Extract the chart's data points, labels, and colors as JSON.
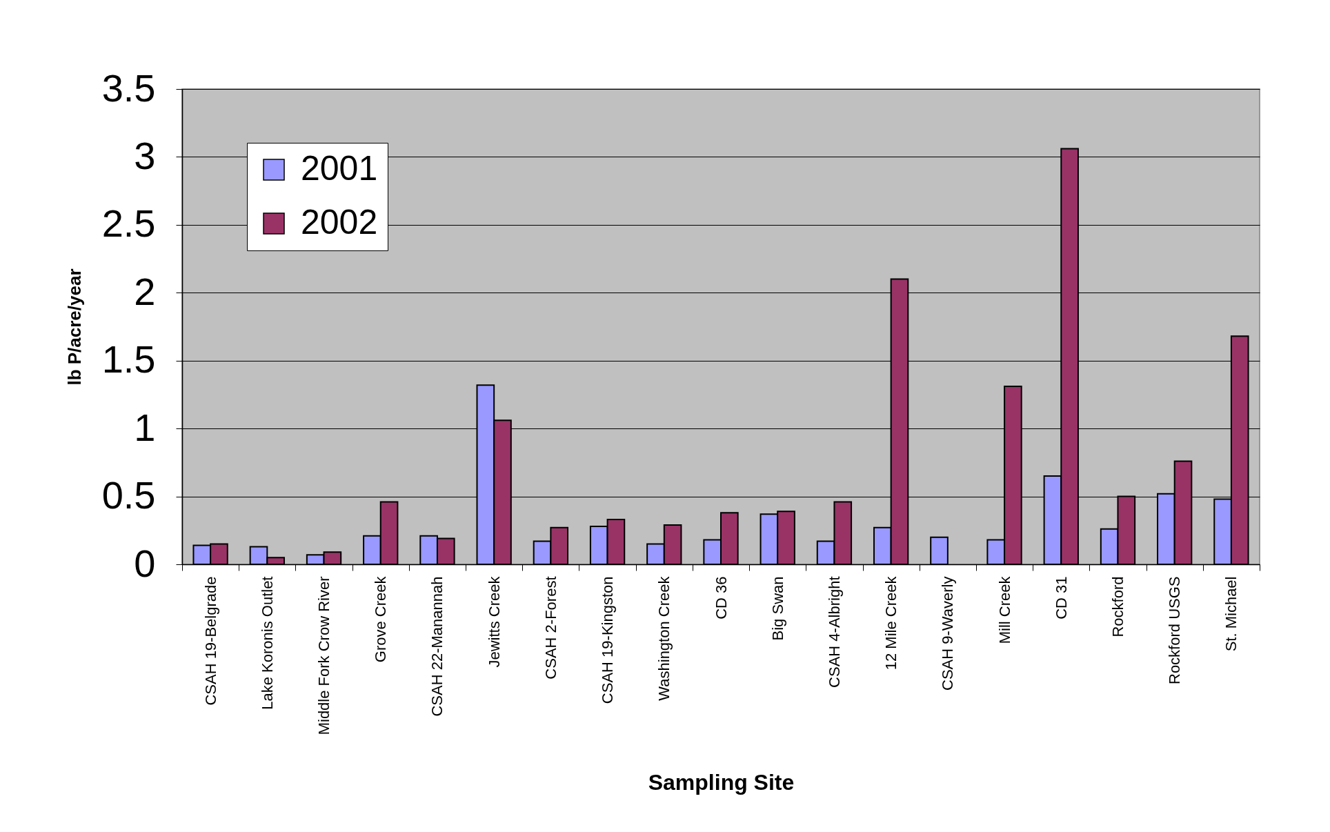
{
  "chart_data": {
    "type": "bar",
    "xlabel": "Sampling Site",
    "ylabel": "lb P/acre/year",
    "categories": [
      "CSAH 19-Belgrade",
      "Lake Koronis Outlet",
      "Middle Fork  Crow River",
      "Grove Creek",
      "CSAH 22-Manannah",
      "Jewitts Creek",
      "CSAH 2-Forest",
      "CSAH 19-Kingston",
      "Washington Creek",
      "CD 36",
      "Big Swan",
      "CSAH 4-Albright",
      "12 Mile Creek",
      "CSAH 9-Waverly",
      "Mill Creek",
      "CD 31",
      "Rockford",
      "Rockford USGS",
      "St. Michael"
    ],
    "series": [
      {
        "name": "2001",
        "color": "#9999ff",
        "values": [
          0.14,
          0.13,
          0.07,
          0.21,
          0.21,
          1.32,
          0.17,
          0.28,
          0.15,
          0.18,
          0.37,
          0.17,
          0.27,
          0.2,
          0.18,
          0.65,
          0.26,
          0.52,
          0.48
        ]
      },
      {
        "name": "2002",
        "color": "#993366",
        "values": [
          0.15,
          0.05,
          0.09,
          0.46,
          0.19,
          1.06,
          0.27,
          0.33,
          0.29,
          0.38,
          0.39,
          0.46,
          2.1,
          null,
          1.31,
          3.06,
          0.5,
          0.76,
          1.68
        ]
      }
    ],
    "ylim": [
      0,
      3.5
    ],
    "yticks": [
      0,
      0.5,
      1,
      1.5,
      2,
      2.5,
      3,
      3.5
    ],
    "grid": "y",
    "legend": "top left"
  }
}
